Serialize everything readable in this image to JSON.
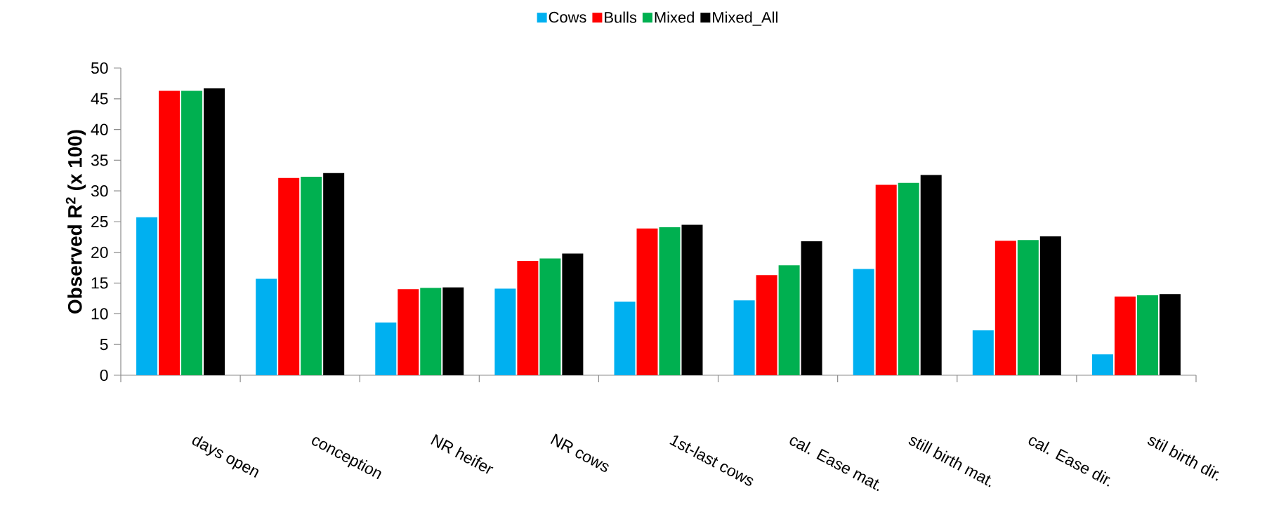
{
  "chart_data": {
    "type": "bar",
    "ylabel": "Observed R$^{2}$ (x 100)",
    "categories": [
      "days open",
      "conception",
      "NR heifer",
      "NR cows",
      "1st-last cows",
      "cal. Ease mat.",
      "still birth mat.",
      "cal. Ease dir.",
      "stil birth dir."
    ],
    "series": [
      {
        "name": "Cows",
        "color": "#00b0f0",
        "values": [
          25.7,
          15.7,
          8.6,
          14.1,
          12.0,
          12.2,
          17.3,
          7.3,
          3.4
        ]
      },
      {
        "name": "Bulls",
        "color": "#ff0000",
        "values": [
          46.3,
          32.1,
          14.0,
          18.6,
          23.9,
          16.3,
          31.0,
          21.9,
          12.8
        ]
      },
      {
        "name": "Mixed",
        "color": "#00b050",
        "values": [
          46.3,
          32.3,
          14.2,
          19.0,
          24.1,
          17.9,
          31.3,
          22.0,
          13.0
        ]
      },
      {
        "name": "Mixed_All",
        "color": "#000000",
        "values": [
          46.7,
          32.9,
          14.3,
          19.8,
          24.5,
          21.8,
          32.6,
          22.6,
          13.2
        ]
      }
    ],
    "ylim": [
      0,
      50
    ],
    "yticks": [
      0,
      5,
      10,
      15,
      20,
      25,
      30,
      35,
      40,
      45,
      50
    ],
    "legend": "top"
  }
}
